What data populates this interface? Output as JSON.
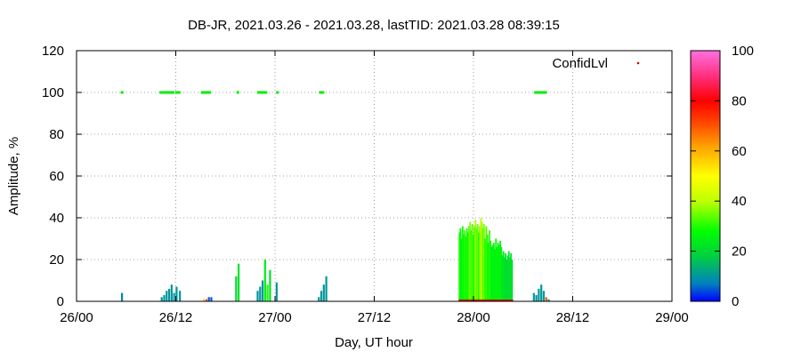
{
  "chart_data": {
    "type": "bar",
    "title": "DB-JR, 2021.03.26 - 2021.03.28, lastTID: 2021.03.28 08:39:15",
    "xlabel": "Day, UT hour",
    "ylabel": "Amplitude, %",
    "xlim": [
      0,
      72
    ],
    "ylim": [
      0,
      120
    ],
    "x_unit": "hours since 26/00",
    "x_ticks": [
      {
        "x": 0,
        "label": "26/00"
      },
      {
        "x": 12,
        "label": "26/12"
      },
      {
        "x": 24,
        "label": "27/00"
      },
      {
        "x": 36,
        "label": "27/12"
      },
      {
        "x": 48,
        "label": "28/00"
      },
      {
        "x": 60,
        "label": "28/12"
      },
      {
        "x": 72,
        "label": "29/00"
      }
    ],
    "y_ticks": [
      0,
      20,
      40,
      60,
      80,
      100,
      120
    ],
    "grid": true,
    "legend": {
      "label": "ConfidLvl",
      "position": "top-right",
      "color": "#cc0000"
    },
    "colorbar": {
      "min": 0,
      "max": 100,
      "ticks": [
        0,
        20,
        40,
        60,
        80,
        100
      ]
    },
    "series": [
      {
        "name": "ConfidLvl",
        "kind": "points",
        "color": "#00ee00",
        "points": [
          [
            5.5,
            100
          ],
          [
            10.2,
            100
          ],
          [
            10.5,
            100
          ],
          [
            10.8,
            100
          ],
          [
            11.1,
            100
          ],
          [
            11.4,
            100
          ],
          [
            11.7,
            100
          ],
          [
            12.1,
            100
          ],
          [
            12.4,
            100
          ],
          [
            15.2,
            100
          ],
          [
            15.5,
            100
          ],
          [
            15.8,
            100
          ],
          [
            16.1,
            100
          ],
          [
            19.5,
            100
          ],
          [
            22.0,
            100
          ],
          [
            22.3,
            100
          ],
          [
            22.6,
            100
          ],
          [
            22.9,
            100
          ],
          [
            24.3,
            100
          ],
          [
            29.5,
            100
          ],
          [
            29.8,
            100
          ],
          [
            55.5,
            100
          ],
          [
            55.8,
            100
          ],
          [
            56.1,
            100
          ],
          [
            56.4,
            100
          ],
          [
            56.7,
            100
          ]
        ]
      },
      {
        "name": "Amplitude",
        "kind": "bars",
        "bars": [
          {
            "x": 5.5,
            "y": 4,
            "c": 8
          },
          {
            "x": 10.3,
            "y": 2,
            "c": 10
          },
          {
            "x": 10.6,
            "y": 3,
            "c": 10
          },
          {
            "x": 10.9,
            "y": 5,
            "c": 10
          },
          {
            "x": 11.2,
            "y": 6,
            "c": 10
          },
          {
            "x": 11.5,
            "y": 8,
            "c": 10
          },
          {
            "x": 11.8,
            "y": 4,
            "c": 10
          },
          {
            "x": 12.1,
            "y": 7,
            "c": 10
          },
          {
            "x": 12.5,
            "y": 5,
            "c": 10
          },
          {
            "x": 15.4,
            "y": 1,
            "c": 55
          },
          {
            "x": 15.7,
            "y": 1,
            "c": 70
          },
          {
            "x": 16.0,
            "y": 2,
            "c": 5
          },
          {
            "x": 16.3,
            "y": 2,
            "c": 5
          },
          {
            "x": 19.3,
            "y": 12,
            "c": 20
          },
          {
            "x": 19.6,
            "y": 18,
            "c": 22
          },
          {
            "x": 21.9,
            "y": 5,
            "c": 10
          },
          {
            "x": 22.2,
            "y": 7,
            "c": 10
          },
          {
            "x": 22.5,
            "y": 10,
            "c": 10
          },
          {
            "x": 22.8,
            "y": 20,
            "c": 25
          },
          {
            "x": 23.1,
            "y": 8,
            "c": 30
          },
          {
            "x": 23.4,
            "y": 15,
            "c": 22
          },
          {
            "x": 24.2,
            "y": 9,
            "c": 10
          },
          {
            "x": 29.3,
            "y": 2,
            "c": 10
          },
          {
            "x": 29.6,
            "y": 5,
            "c": 10
          },
          {
            "x": 29.9,
            "y": 8,
            "c": 10
          },
          {
            "x": 30.2,
            "y": 12,
            "c": 10
          },
          {
            "x": 55.3,
            "y": 4,
            "c": 10
          },
          {
            "x": 55.6,
            "y": 3,
            "c": 10
          },
          {
            "x": 55.9,
            "y": 6,
            "c": 10
          },
          {
            "x": 56.2,
            "y": 8,
            "c": 10
          },
          {
            "x": 56.5,
            "y": 5,
            "c": 10
          },
          {
            "x": 56.8,
            "y": 2,
            "c": 70
          },
          {
            "x": 57.1,
            "y": 1,
            "c": 10
          }
        ]
      },
      {
        "name": "Amplitude",
        "kind": "bars",
        "range": [
          46.2,
          52.7
        ],
        "bars_y": [
          33,
          35,
          30,
          36,
          32,
          34,
          31,
          35,
          33,
          36,
          38,
          34,
          37,
          32,
          36,
          39,
          35,
          37,
          33,
          36,
          40,
          38,
          35,
          37,
          30,
          36,
          32,
          28,
          34,
          29,
          26,
          27,
          28,
          25,
          30,
          26,
          28,
          27,
          29,
          26,
          22,
          24,
          21,
          23,
          20,
          22,
          24,
          21,
          23,
          20
        ],
        "bars_c": [
          30,
          28,
          25,
          29,
          27,
          31,
          26,
          30,
          28,
          32,
          36,
          30,
          34,
          28,
          32,
          38,
          33,
          35,
          30,
          34,
          40,
          38,
          33,
          36,
          28,
          33,
          29,
          26,
          31,
          27,
          25,
          25,
          26,
          24,
          28,
          25,
          27,
          25,
          27,
          25,
          22,
          23,
          21,
          22,
          20,
          21,
          23,
          21,
          22,
          20
        ]
      }
    ],
    "baseline_marker": {
      "x_range": [
        46.2,
        52.8
      ],
      "color": "#cc0000"
    }
  }
}
